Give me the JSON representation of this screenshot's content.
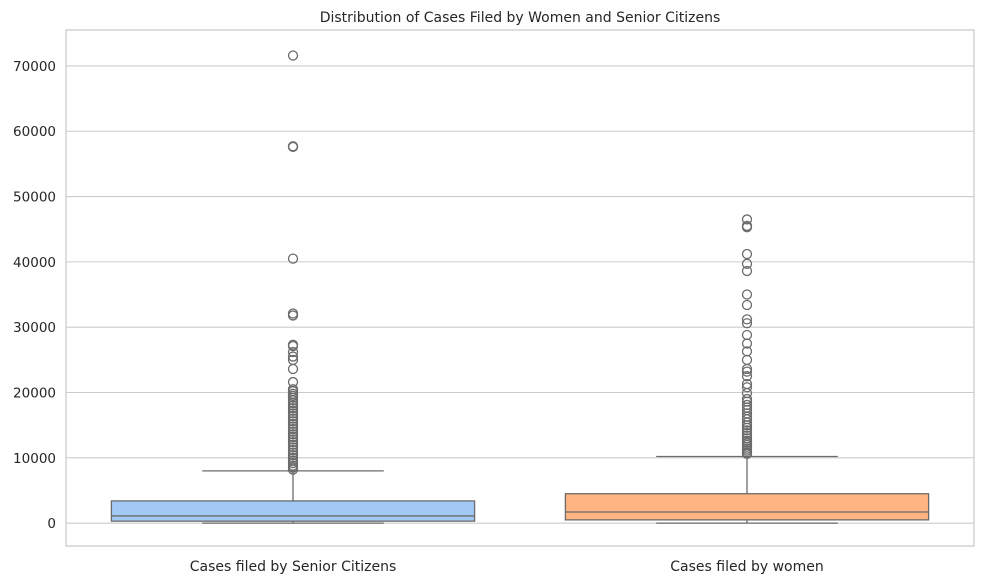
{
  "chart_data": {
    "type": "box",
    "title": "Distribution of Cases Filed by Women and Senior Citizens",
    "xlabel": "",
    "ylabel": "",
    "ylim": [
      -3500,
      75500
    ],
    "yticks": [
      0,
      10000,
      20000,
      30000,
      40000,
      50000,
      60000,
      70000
    ],
    "grid": true,
    "legend": "none",
    "categories": [
      "Cases filed by Senior Citizens",
      "Cases filed by women"
    ],
    "series": [
      {
        "color": "#a1c9f4",
        "whisker_low": 0,
        "q1": 300,
        "median": 1100,
        "q3": 3400,
        "whisker_high": 8000,
        "outliers": [
          71600,
          57700,
          57600,
          40500,
          32100,
          31800,
          27300,
          27100,
          26200,
          25500,
          25000,
          23600,
          21600,
          20500,
          20200,
          19800,
          19500,
          19200,
          18800,
          18400,
          18000,
          17600,
          17200,
          16800,
          16400,
          16000,
          15600,
          15200,
          14800,
          14400,
          14000,
          13600,
          13200,
          12800,
          12400,
          12000,
          11600,
          11200,
          10800,
          10400,
          10000,
          9600,
          9200,
          8800,
          8500,
          8200
        ]
      },
      {
        "color": "#ffb482",
        "whisker_low": 0,
        "q1": 500,
        "median": 1700,
        "q3": 4500,
        "whisker_high": 10200,
        "outliers": [
          46500,
          45500,
          45300,
          41200,
          39700,
          38600,
          35000,
          33400,
          31200,
          30600,
          28800,
          27500,
          26300,
          25000,
          23600,
          23200,
          22500,
          21300,
          20800,
          19900,
          19000,
          18600,
          18100,
          17700,
          17300,
          16800,
          16300,
          15900,
          15400,
          15000,
          14600,
          14200,
          13800,
          13400,
          13000,
          12600,
          12300,
          12000,
          11700,
          11400,
          11100,
          10800,
          10600
        ]
      }
    ]
  }
}
